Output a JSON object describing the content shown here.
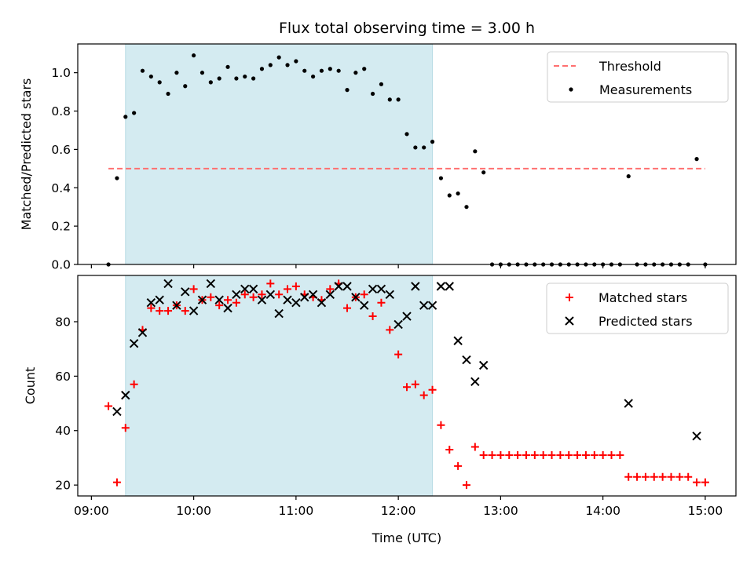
{
  "figure": {
    "title": "Flux total observing time = 3.00 h",
    "xlabel": "Time (UTC)",
    "x_ticks": [
      "09:00",
      "10:00",
      "11:00",
      "12:00",
      "13:00",
      "14:00",
      "15:00"
    ]
  },
  "chart_data": [
    {
      "type": "scatter",
      "panel": "top",
      "ylabel": "Matched/Predicted stars",
      "xlim": [
        "08:52",
        "15:18"
      ],
      "ylim": [
        0,
        1.15
      ],
      "y_ticks": [
        "0.0",
        "0.2",
        "0.4",
        "0.6",
        "0.8",
        "1.0"
      ],
      "shaded_interval": [
        "09:20",
        "12:20"
      ],
      "shade_color": "#d4ebf1",
      "legend": {
        "placement": "upper right",
        "items": [
          "Threshold",
          "Measurements"
        ]
      },
      "threshold": {
        "name": "Threshold",
        "y": 0.5,
        "x_range": [
          "09:10",
          "15:00"
        ],
        "color": "#ff7070",
        "style": "dashed"
      },
      "series": [
        {
          "name": "Measurements",
          "marker": "dot",
          "color": "#000000",
          "x": [
            "09:10",
            "09:15",
            "09:20",
            "09:25",
            "09:30",
            "09:35",
            "09:40",
            "09:45",
            "09:50",
            "09:55",
            "10:00",
            "10:05",
            "10:10",
            "10:15",
            "10:20",
            "10:25",
            "10:30",
            "10:35",
            "10:40",
            "10:45",
            "10:50",
            "10:55",
            "11:00",
            "11:05",
            "11:10",
            "11:15",
            "11:20",
            "11:25",
            "11:30",
            "11:35",
            "11:40",
            "11:45",
            "11:50",
            "11:55",
            "12:00",
            "12:05",
            "12:10",
            "12:15",
            "12:20",
            "12:25",
            "12:30",
            "12:35",
            "12:40",
            "12:45",
            "12:50",
            "12:55",
            "13:00",
            "13:05",
            "13:10",
            "13:15",
            "13:20",
            "13:25",
            "13:30",
            "13:35",
            "13:40",
            "13:45",
            "13:50",
            "13:55",
            "14:00",
            "14:05",
            "14:10",
            "14:15",
            "14:20",
            "14:25",
            "14:30",
            "14:35",
            "14:40",
            "14:45",
            "14:50",
            "14:55",
            "15:00"
          ],
          "y": [
            0.0,
            0.45,
            0.77,
            0.79,
            1.01,
            0.98,
            0.95,
            0.89,
            1.0,
            0.93,
            1.09,
            1.0,
            0.95,
            0.97,
            1.03,
            0.97,
            0.98,
            0.97,
            1.02,
            1.04,
            1.08,
            1.04,
            1.06,
            1.01,
            0.98,
            1.01,
            1.02,
            1.01,
            0.91,
            1.0,
            1.02,
            0.89,
            0.94,
            0.86,
            0.86,
            0.68,
            0.61,
            0.61,
            0.64,
            0.45,
            0.36,
            0.37,
            0.3,
            0.59,
            0.48,
            0.0,
            0.0,
            0.0,
            0.0,
            0.0,
            0.0,
            0.0,
            0.0,
            0.0,
            0.0,
            0.0,
            0.0,
            0.0,
            0.0,
            0.0,
            0.0,
            0.46,
            0.0,
            0.0,
            0.0,
            0.0,
            0.0,
            0.0,
            0.0,
            0.55,
            0.0
          ]
        }
      ]
    },
    {
      "type": "scatter",
      "panel": "bottom",
      "ylabel": "Count",
      "xlim": [
        "08:52",
        "15:18"
      ],
      "ylim": [
        16,
        97
      ],
      "y_ticks": [
        "20",
        "40",
        "60",
        "80"
      ],
      "shaded_interval": [
        "09:20",
        "12:20"
      ],
      "shade_color": "#d4ebf1",
      "legend": {
        "placement": "upper right",
        "items": [
          "Matched stars",
          "Predicted stars"
        ]
      },
      "series": [
        {
          "name": "Matched stars",
          "marker": "plus",
          "color": "#ff0000",
          "x": [
            "09:10",
            "09:15",
            "09:20",
            "09:25",
            "09:30",
            "09:35",
            "09:40",
            "09:45",
            "09:50",
            "09:55",
            "10:00",
            "10:05",
            "10:10",
            "10:15",
            "10:20",
            "10:25",
            "10:30",
            "10:35",
            "10:40",
            "10:45",
            "10:50",
            "10:55",
            "11:00",
            "11:05",
            "11:10",
            "11:15",
            "11:20",
            "11:25",
            "11:30",
            "11:35",
            "11:40",
            "11:45",
            "11:50",
            "11:55",
            "12:00",
            "12:05",
            "12:10",
            "12:15",
            "12:20",
            "12:25",
            "12:30",
            "12:35",
            "12:40",
            "12:45",
            "12:50",
            "12:55",
            "13:00",
            "13:05",
            "13:10",
            "13:15",
            "13:20",
            "13:25",
            "13:30",
            "13:35",
            "13:40",
            "13:45",
            "13:50",
            "13:55",
            "14:00",
            "14:05",
            "14:10",
            "14:15",
            "14:20",
            "14:25",
            "14:30",
            "14:35",
            "14:40",
            "14:45",
            "14:50",
            "14:55",
            "15:00"
          ],
          "y": [
            49,
            21,
            41,
            57,
            77,
            85,
            84,
            84,
            86,
            84,
            92,
            88,
            89,
            86,
            88,
            87,
            90,
            89,
            90,
            94,
            90,
            92,
            93,
            90,
            89,
            88,
            92,
            94,
            85,
            89,
            90,
            82,
            87,
            77,
            68,
            56,
            57,
            53,
            55,
            42,
            33,
            27,
            20,
            34,
            31,
            31,
            31,
            31,
            31,
            31,
            31,
            31,
            31,
            31,
            31,
            31,
            31,
            31,
            31,
            31,
            31,
            23,
            23,
            23,
            23,
            23,
            23,
            23,
            23,
            21,
            21
          ]
        },
        {
          "name": "Predicted stars",
          "marker": "x",
          "color": "#000000",
          "x": [
            "09:15",
            "09:20",
            "09:25",
            "09:30",
            "09:35",
            "09:40",
            "09:45",
            "09:50",
            "09:55",
            "10:00",
            "10:05",
            "10:10",
            "10:15",
            "10:20",
            "10:25",
            "10:30",
            "10:35",
            "10:40",
            "10:45",
            "10:50",
            "10:55",
            "11:00",
            "11:05",
            "11:10",
            "11:15",
            "11:20",
            "11:25",
            "11:30",
            "11:35",
            "11:40",
            "11:45",
            "11:50",
            "11:55",
            "12:00",
            "12:05",
            "12:10",
            "12:15",
            "12:20",
            "12:25",
            "12:30",
            "12:35",
            "12:40",
            "12:45",
            "12:50",
            "14:15",
            "14:55"
          ],
          "y": [
            47,
            53,
            72,
            76,
            87,
            88,
            94,
            86,
            91,
            84,
            88,
            94,
            88,
            85,
            90,
            92,
            92,
            88,
            90,
            83,
            88,
            87,
            89,
            90,
            87,
            90,
            93,
            93,
            89,
            86,
            92,
            92,
            90,
            79,
            82,
            93,
            86,
            86,
            93,
            93,
            73,
            66,
            58,
            64,
            50,
            38
          ]
        }
      ]
    }
  ]
}
